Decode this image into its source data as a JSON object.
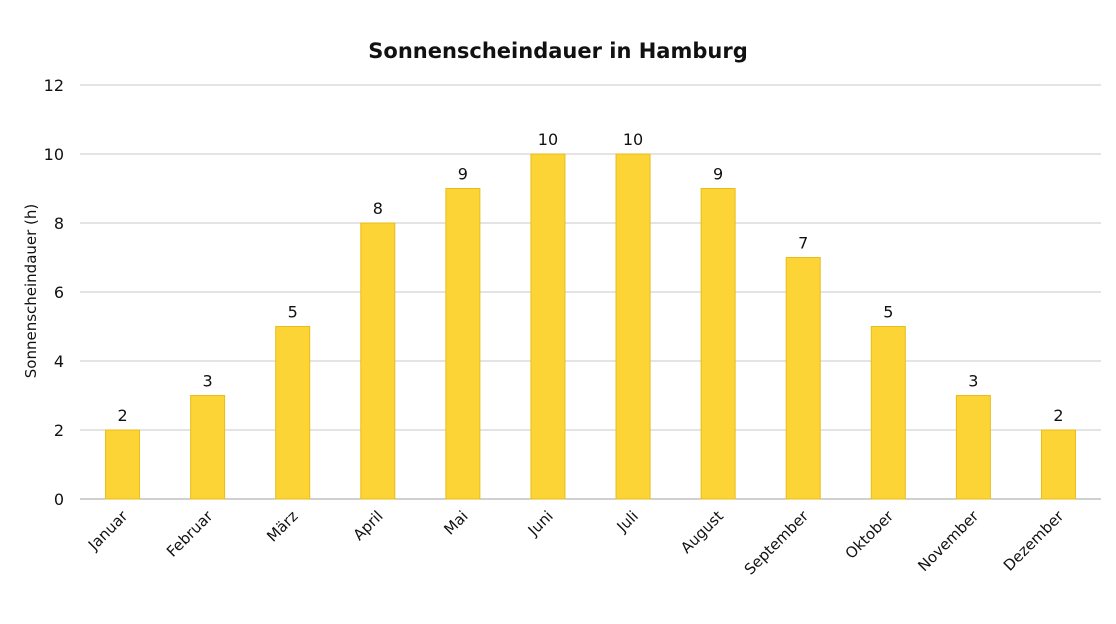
{
  "chart_data": {
    "type": "bar",
    "title": "Sonnenscheindauer in Hamburg",
    "ylabel": "Sonnenscheindauer (h)",
    "xlabel": "",
    "categories": [
      "Januar",
      "Februar",
      "März",
      "April",
      "Mai",
      "Juni",
      "Juli",
      "August",
      "September",
      "Oktober",
      "November",
      "Dezember"
    ],
    "values": [
      2,
      3,
      5,
      8,
      9,
      10,
      10,
      9,
      7,
      5,
      3,
      2
    ],
    "ylim": [
      0,
      12
    ],
    "yticks": [
      0,
      2,
      4,
      6,
      8,
      10,
      12
    ],
    "grid": true,
    "legend": "none",
    "colors": {
      "bar": "#fdd435",
      "bar_edge": "#e8bd1a"
    }
  }
}
